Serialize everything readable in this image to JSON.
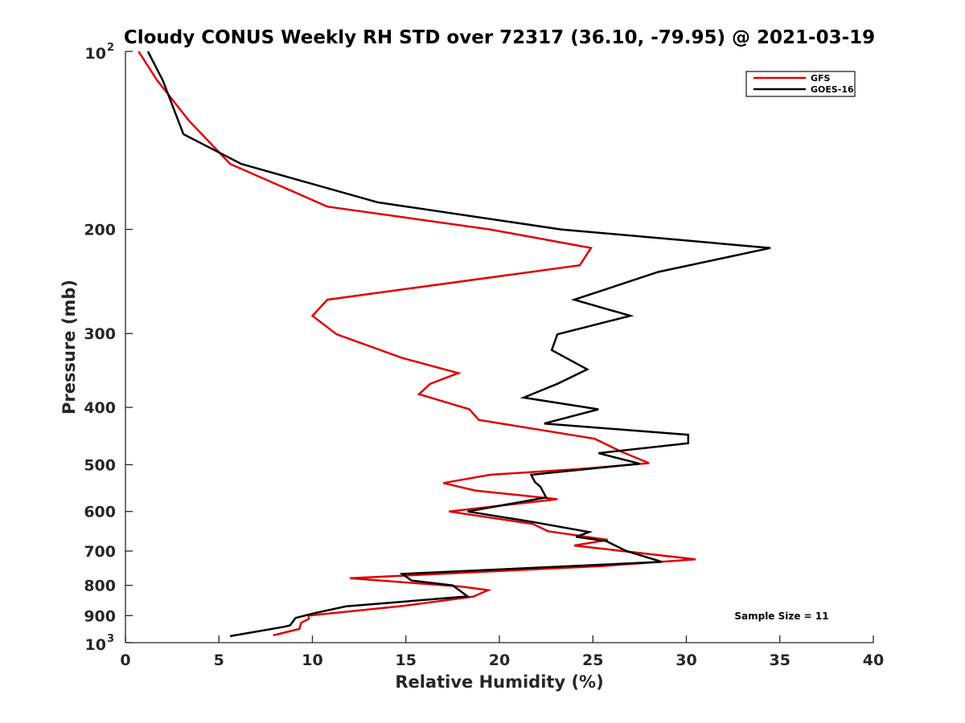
{
  "chart_data": {
    "type": "line",
    "title": "Cloudy CONUS Weekly RH STD over 72317 (36.10, -79.95) @ 2021-03-19",
    "xlabel": "Relative Humidity (%)",
    "ylabel": "Pressure (mb)",
    "xlim": [
      0,
      40
    ],
    "ylim": [
      100,
      1000
    ],
    "y_scale": "log",
    "y_reversed": true,
    "grid": false,
    "legend_position": "top-right",
    "x_ticks": [
      "0",
      "5",
      "10",
      "15",
      "20",
      "25",
      "30",
      "35",
      "40"
    ],
    "y_ticks": [
      {
        "value": 100,
        "base": "10",
        "exp": "2"
      },
      {
        "value": 200,
        "label": "200"
      },
      {
        "value": 300,
        "label": "300"
      },
      {
        "value": 400,
        "label": "400"
      },
      {
        "value": 500,
        "label": "500"
      },
      {
        "value": 600,
        "label": "600"
      },
      {
        "value": 700,
        "label": "700"
      },
      {
        "value": 800,
        "label": "800"
      },
      {
        "value": 900,
        "label": "900"
      },
      {
        "value": 1000,
        "base": "10",
        "exp": "3"
      }
    ],
    "annotation": "Sample Size = 11",
    "series": [
      {
        "name": "GFS",
        "color": "#e00000",
        "points": [
          [
            0.7,
            100
          ],
          [
            1.7,
            112
          ],
          [
            3.4,
            131
          ],
          [
            5.6,
            155
          ],
          [
            10.8,
            183
          ],
          [
            19.5,
            200
          ],
          [
            24.9,
            215
          ],
          [
            24.3,
            230
          ],
          [
            10.8,
            263
          ],
          [
            10.0,
            280
          ],
          [
            11.3,
            301
          ],
          [
            14.8,
            330
          ],
          [
            17.8,
            350
          ],
          [
            16.3,
            365
          ],
          [
            15.7,
            380
          ],
          [
            18.4,
            403
          ],
          [
            18.9,
            420
          ],
          [
            25.1,
            452
          ],
          [
            26.5,
            475
          ],
          [
            28.0,
            497
          ],
          [
            24.5,
            508
          ],
          [
            19.5,
            520
          ],
          [
            17.0,
            537
          ],
          [
            18.7,
            553
          ],
          [
            23.1,
            572
          ],
          [
            17.3,
            600
          ],
          [
            21.8,
            630
          ],
          [
            22.6,
            648
          ],
          [
            25.8,
            670
          ],
          [
            24.0,
            685
          ],
          [
            30.5,
            723
          ],
          [
            25.5,
            742
          ],
          [
            12.0,
            778
          ],
          [
            18.0,
            804
          ],
          [
            19.4,
            815
          ],
          [
            18.6,
            836
          ],
          [
            14.8,
            867
          ],
          [
            9.8,
            900
          ],
          [
            9.8,
            912
          ],
          [
            9.4,
            925
          ],
          [
            9.3,
            948
          ],
          [
            7.9,
            972
          ]
        ]
      },
      {
        "name": "GOES-16",
        "color": "#000000",
        "points": [
          [
            1.2,
            100
          ],
          [
            2.0,
            112
          ],
          [
            3.1,
            138
          ],
          [
            6.2,
            155
          ],
          [
            13.5,
            180
          ],
          [
            23.3,
            200
          ],
          [
            34.5,
            215
          ],
          [
            28.5,
            236
          ],
          [
            24.0,
            263
          ],
          [
            27.0,
            280
          ],
          [
            23.1,
            301
          ],
          [
            22.8,
            320
          ],
          [
            24.7,
            345
          ],
          [
            23.1,
            365
          ],
          [
            21.3,
            385
          ],
          [
            25.3,
            403
          ],
          [
            22.4,
            426
          ],
          [
            30.1,
            445
          ],
          [
            30.1,
            460
          ],
          [
            25.3,
            478
          ],
          [
            27.5,
            498
          ],
          [
            21.7,
            520
          ],
          [
            21.9,
            535
          ],
          [
            22.2,
            545
          ],
          [
            22.5,
            568
          ],
          [
            18.3,
            600
          ],
          [
            21.8,
            625
          ],
          [
            24.8,
            650
          ],
          [
            24.1,
            662
          ],
          [
            25.7,
            673
          ],
          [
            26.8,
            700
          ],
          [
            28.7,
            730
          ],
          [
            14.8,
            765
          ],
          [
            15.3,
            785
          ],
          [
            17.5,
            800
          ],
          [
            18.3,
            835
          ],
          [
            11.8,
            868
          ],
          [
            10.2,
            890
          ],
          [
            9.1,
            908
          ],
          [
            8.8,
            935
          ],
          [
            8.5,
            940
          ],
          [
            5.6,
            975
          ]
        ]
      }
    ]
  }
}
